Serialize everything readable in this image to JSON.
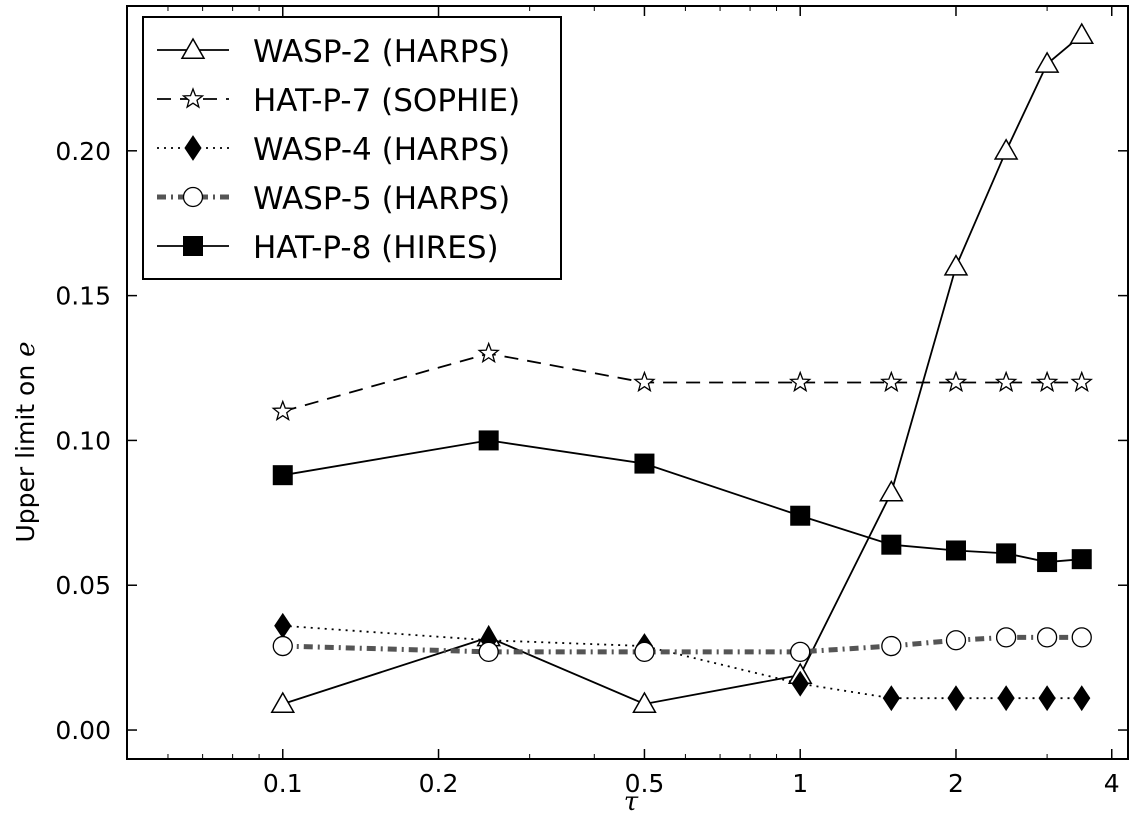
{
  "chart_data": {
    "type": "line",
    "xlabel": "τ",
    "ylabel_prefix": "Upper limit on ",
    "ylabel_symbol": "e",
    "x_scale": "log",
    "xlim": [
      0.05,
      4.3
    ],
    "ylim": [
      -0.01,
      0.25
    ],
    "x_ticks": [
      {
        "value": 0.1,
        "label": "0.1"
      },
      {
        "value": 0.2,
        "label": "0.2"
      },
      {
        "value": 0.5,
        "label": "0.5"
      },
      {
        "value": 1,
        "label": "1"
      },
      {
        "value": 2,
        "label": "2"
      },
      {
        "value": 4,
        "label": "4"
      }
    ],
    "x_minor_ticks": [
      0.06,
      0.07,
      0.08,
      0.09,
      0.3,
      0.4,
      0.6,
      0.7,
      0.8,
      0.9,
      3
    ],
    "y_ticks": [
      {
        "value": 0.0,
        "label": "0.00"
      },
      {
        "value": 0.05,
        "label": "0.05"
      },
      {
        "value": 0.1,
        "label": "0.10"
      },
      {
        "value": 0.15,
        "label": "0.15"
      },
      {
        "value": 0.2,
        "label": "0.20"
      }
    ],
    "x": [
      0.1,
      0.25,
      0.5,
      1.0,
      1.5,
      2.0,
      2.5,
      3.0,
      3.5
    ],
    "series": [
      {
        "name": "WASP-2 (HARPS)",
        "values": [
          0.009,
          0.032,
          0.009,
          0.019,
          0.082,
          0.16,
          0.2,
          0.23,
          0.24
        ],
        "line": "solid",
        "marker": "triangle-open",
        "color": "#000000"
      },
      {
        "name": "HAT-P-7 (SOPHIE)",
        "values": [
          0.11,
          0.13,
          0.12,
          0.12,
          0.12,
          0.12,
          0.12,
          0.12,
          0.12
        ],
        "line": "dashed",
        "marker": "star-open",
        "color": "#000000"
      },
      {
        "name": "WASP-4 (HARPS)",
        "values": [
          0.036,
          0.031,
          0.029,
          0.016,
          0.011,
          0.011,
          0.011,
          0.011,
          0.011
        ],
        "line": "dotted",
        "marker": "diamond-filled",
        "color": "#000000"
      },
      {
        "name": "WASP-5 (HARPS)",
        "values": [
          0.029,
          0.027,
          0.027,
          0.027,
          0.029,
          0.031,
          0.032,
          0.032,
          0.032
        ],
        "line": "dashdot-thick",
        "marker": "circle-open",
        "color": "#555555"
      },
      {
        "name": "HAT-P-8 (HIRES)",
        "values": [
          0.088,
          0.1,
          0.092,
          0.074,
          0.064,
          0.062,
          0.061,
          0.058,
          0.059
        ],
        "line": "solid",
        "marker": "square-filled",
        "color": "#000000"
      }
    ],
    "legend_position": "top-left",
    "grid": false
  }
}
